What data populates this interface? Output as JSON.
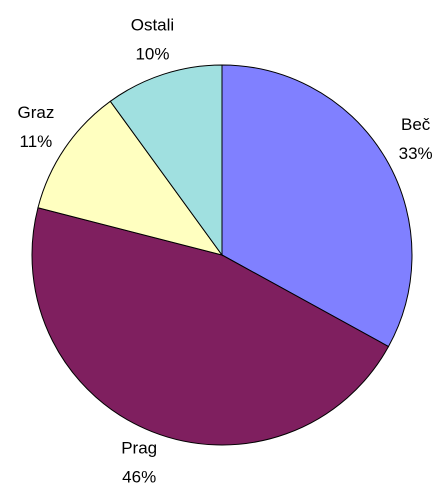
{
  "chart_data": {
    "type": "pie",
    "categories": [
      "Beč",
      "Prag",
      "Graz",
      "Ostali"
    ],
    "values": [
      33,
      46,
      11,
      10
    ],
    "value_labels": [
      "33%",
      "46%",
      "11%",
      "10%"
    ],
    "colors": [
      "#8080ff",
      "#7f1f5f",
      "#ffffc0",
      "#a0e0e0"
    ]
  }
}
